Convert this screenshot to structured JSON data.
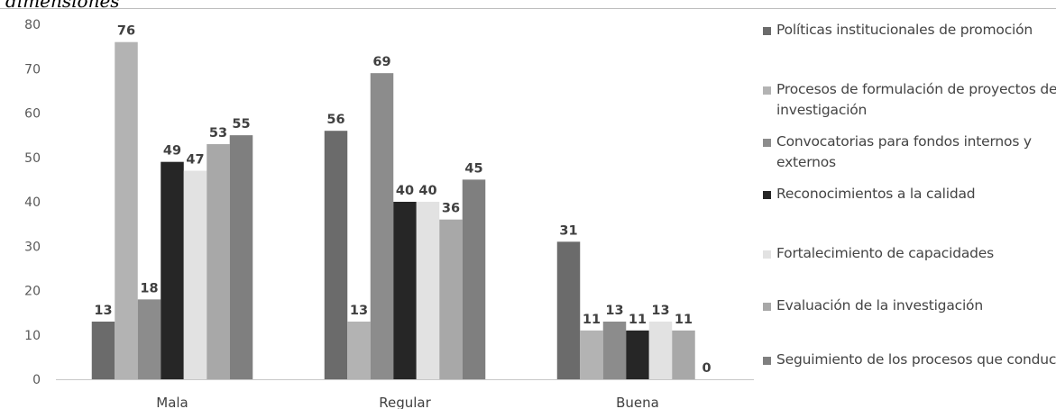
{
  "caption_fragment": "dimensiones",
  "chart_data": {
    "type": "bar",
    "categories": [
      "Mala",
      "Regular",
      "Buena"
    ],
    "ylim": [
      0,
      80
    ],
    "yticks": [
      "0",
      "10",
      "20",
      "30",
      "40",
      "50",
      "60",
      "70",
      "80"
    ],
    "grid": false,
    "legend_position": "right",
    "series": [
      {
        "name": "Políticas institucionales de promoción",
        "color": "#6b6b6b",
        "values": [
          13,
          56,
          31
        ]
      },
      {
        "name": "Procesos de formulación de proyectos de investigación",
        "color": "#b3b3b3",
        "values": [
          76,
          13,
          11
        ]
      },
      {
        "name": "Convocatorias para fondos internos y externos",
        "color": "#8c8c8c",
        "values": [
          18,
          69,
          13
        ]
      },
      {
        "name": "Reconocimientos a la calidad",
        "color": "#262626",
        "values": [
          49,
          40,
          11
        ]
      },
      {
        "name": "Fortalecimiento de capacidades",
        "color": "#e2e2e2",
        "values": [
          47,
          40,
          13
        ]
      },
      {
        "name": "Evaluación de la investigación",
        "color": "#a8a8a8",
        "values": [
          53,
          36,
          11
        ]
      },
      {
        "name": "Seguimiento de los procesos que conduce",
        "color": "#7f7f7f",
        "values": [
          55,
          45,
          0
        ]
      }
    ]
  }
}
